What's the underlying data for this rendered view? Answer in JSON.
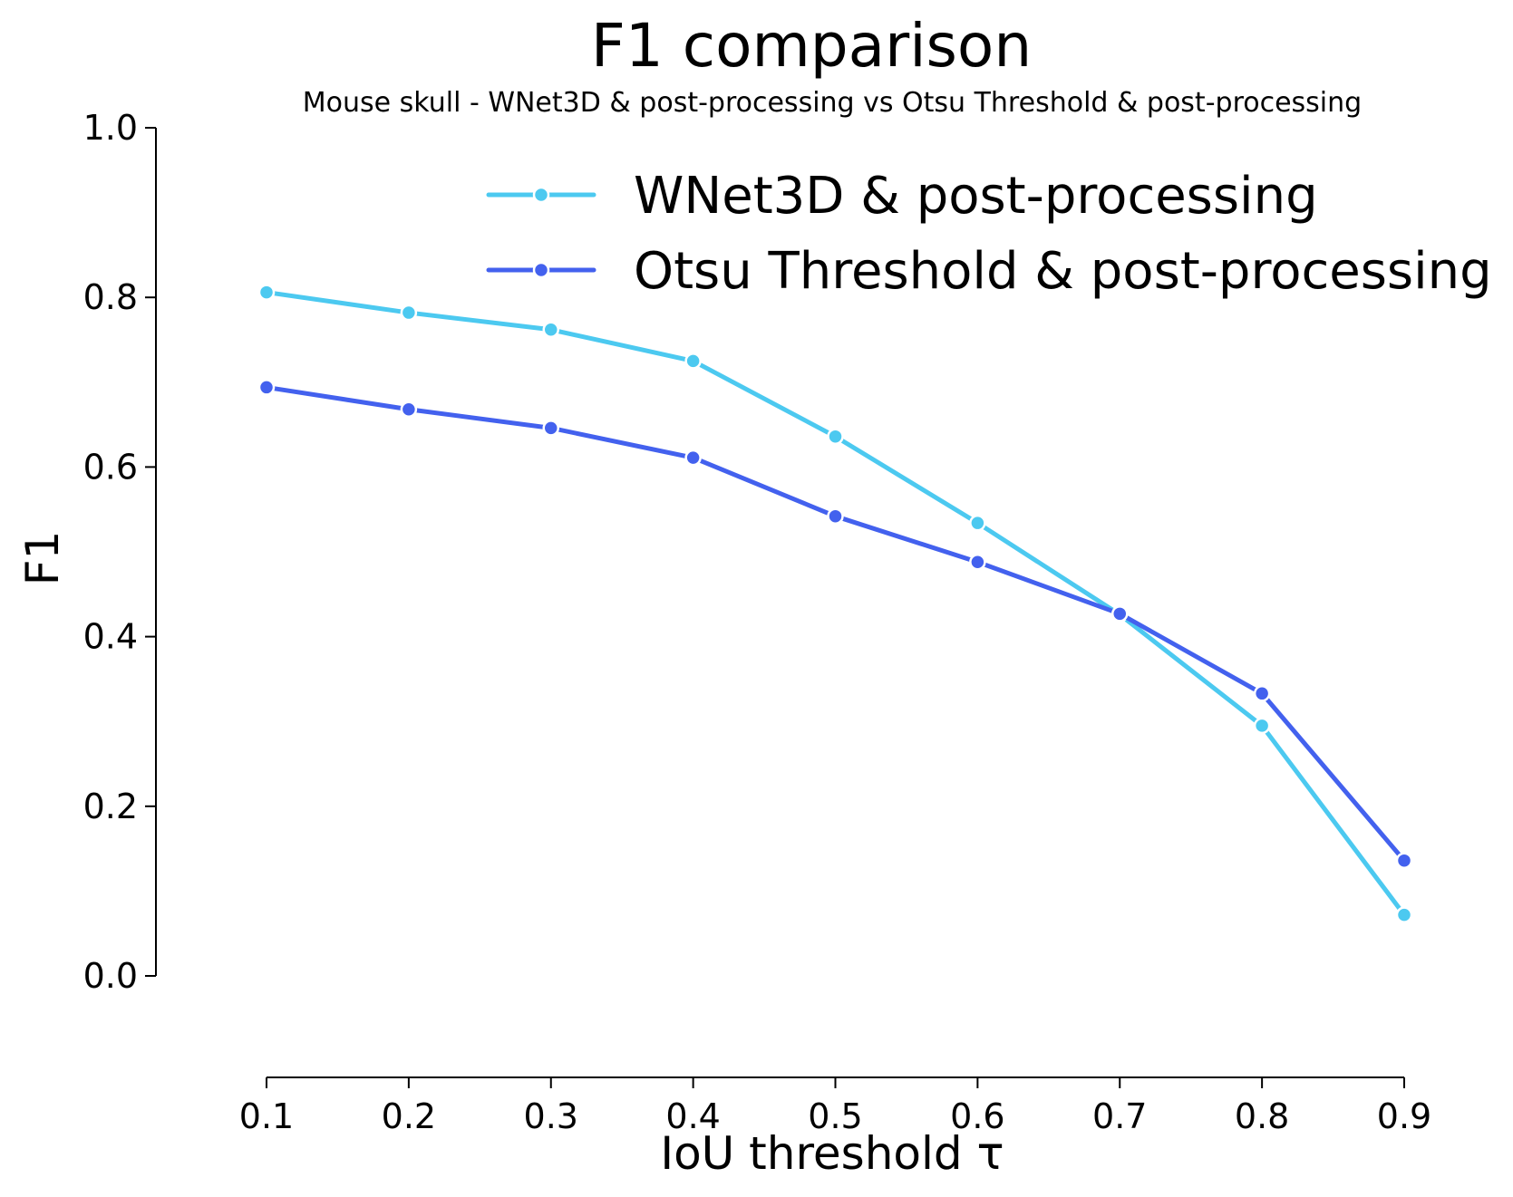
{
  "chart_data": {
    "type": "line",
    "title": "F1 comparison",
    "subtitle": "Mouse skull - WNet3D & post-processing vs Otsu Threshold & post-processing",
    "xlabel": "IoU threshold τ",
    "ylabel": "F1",
    "x": [
      0.1,
      0.2,
      0.3,
      0.4,
      0.5,
      0.6,
      0.7,
      0.8,
      0.9
    ],
    "x_tick_labels": [
      "0.1",
      "0.2",
      "0.3",
      "0.4",
      "0.5",
      "0.6",
      "0.7",
      "0.8",
      "0.9"
    ],
    "y_ticks": [
      0.0,
      0.2,
      0.4,
      0.6,
      0.8,
      1.0
    ],
    "y_tick_labels": [
      "0.0",
      "0.2",
      "0.4",
      "0.6",
      "0.8",
      "1.0"
    ],
    "ylim": [
      0.0,
      1.0
    ],
    "xlim": [
      0.1,
      0.9
    ],
    "grid": false,
    "legend_position": "top-right",
    "series": [
      {
        "name": "WNet3D & post-processing",
        "color": "#4CC9F0",
        "values": [
          0.806,
          0.782,
          0.762,
          0.725,
          0.636,
          0.534,
          0.426,
          0.295,
          0.072
        ]
      },
      {
        "name": "Otsu Threshold & post-processing",
        "color": "#4361EE",
        "values": [
          0.694,
          0.668,
          0.646,
          0.611,
          0.542,
          0.488,
          0.427,
          0.333,
          0.136
        ]
      }
    ]
  }
}
